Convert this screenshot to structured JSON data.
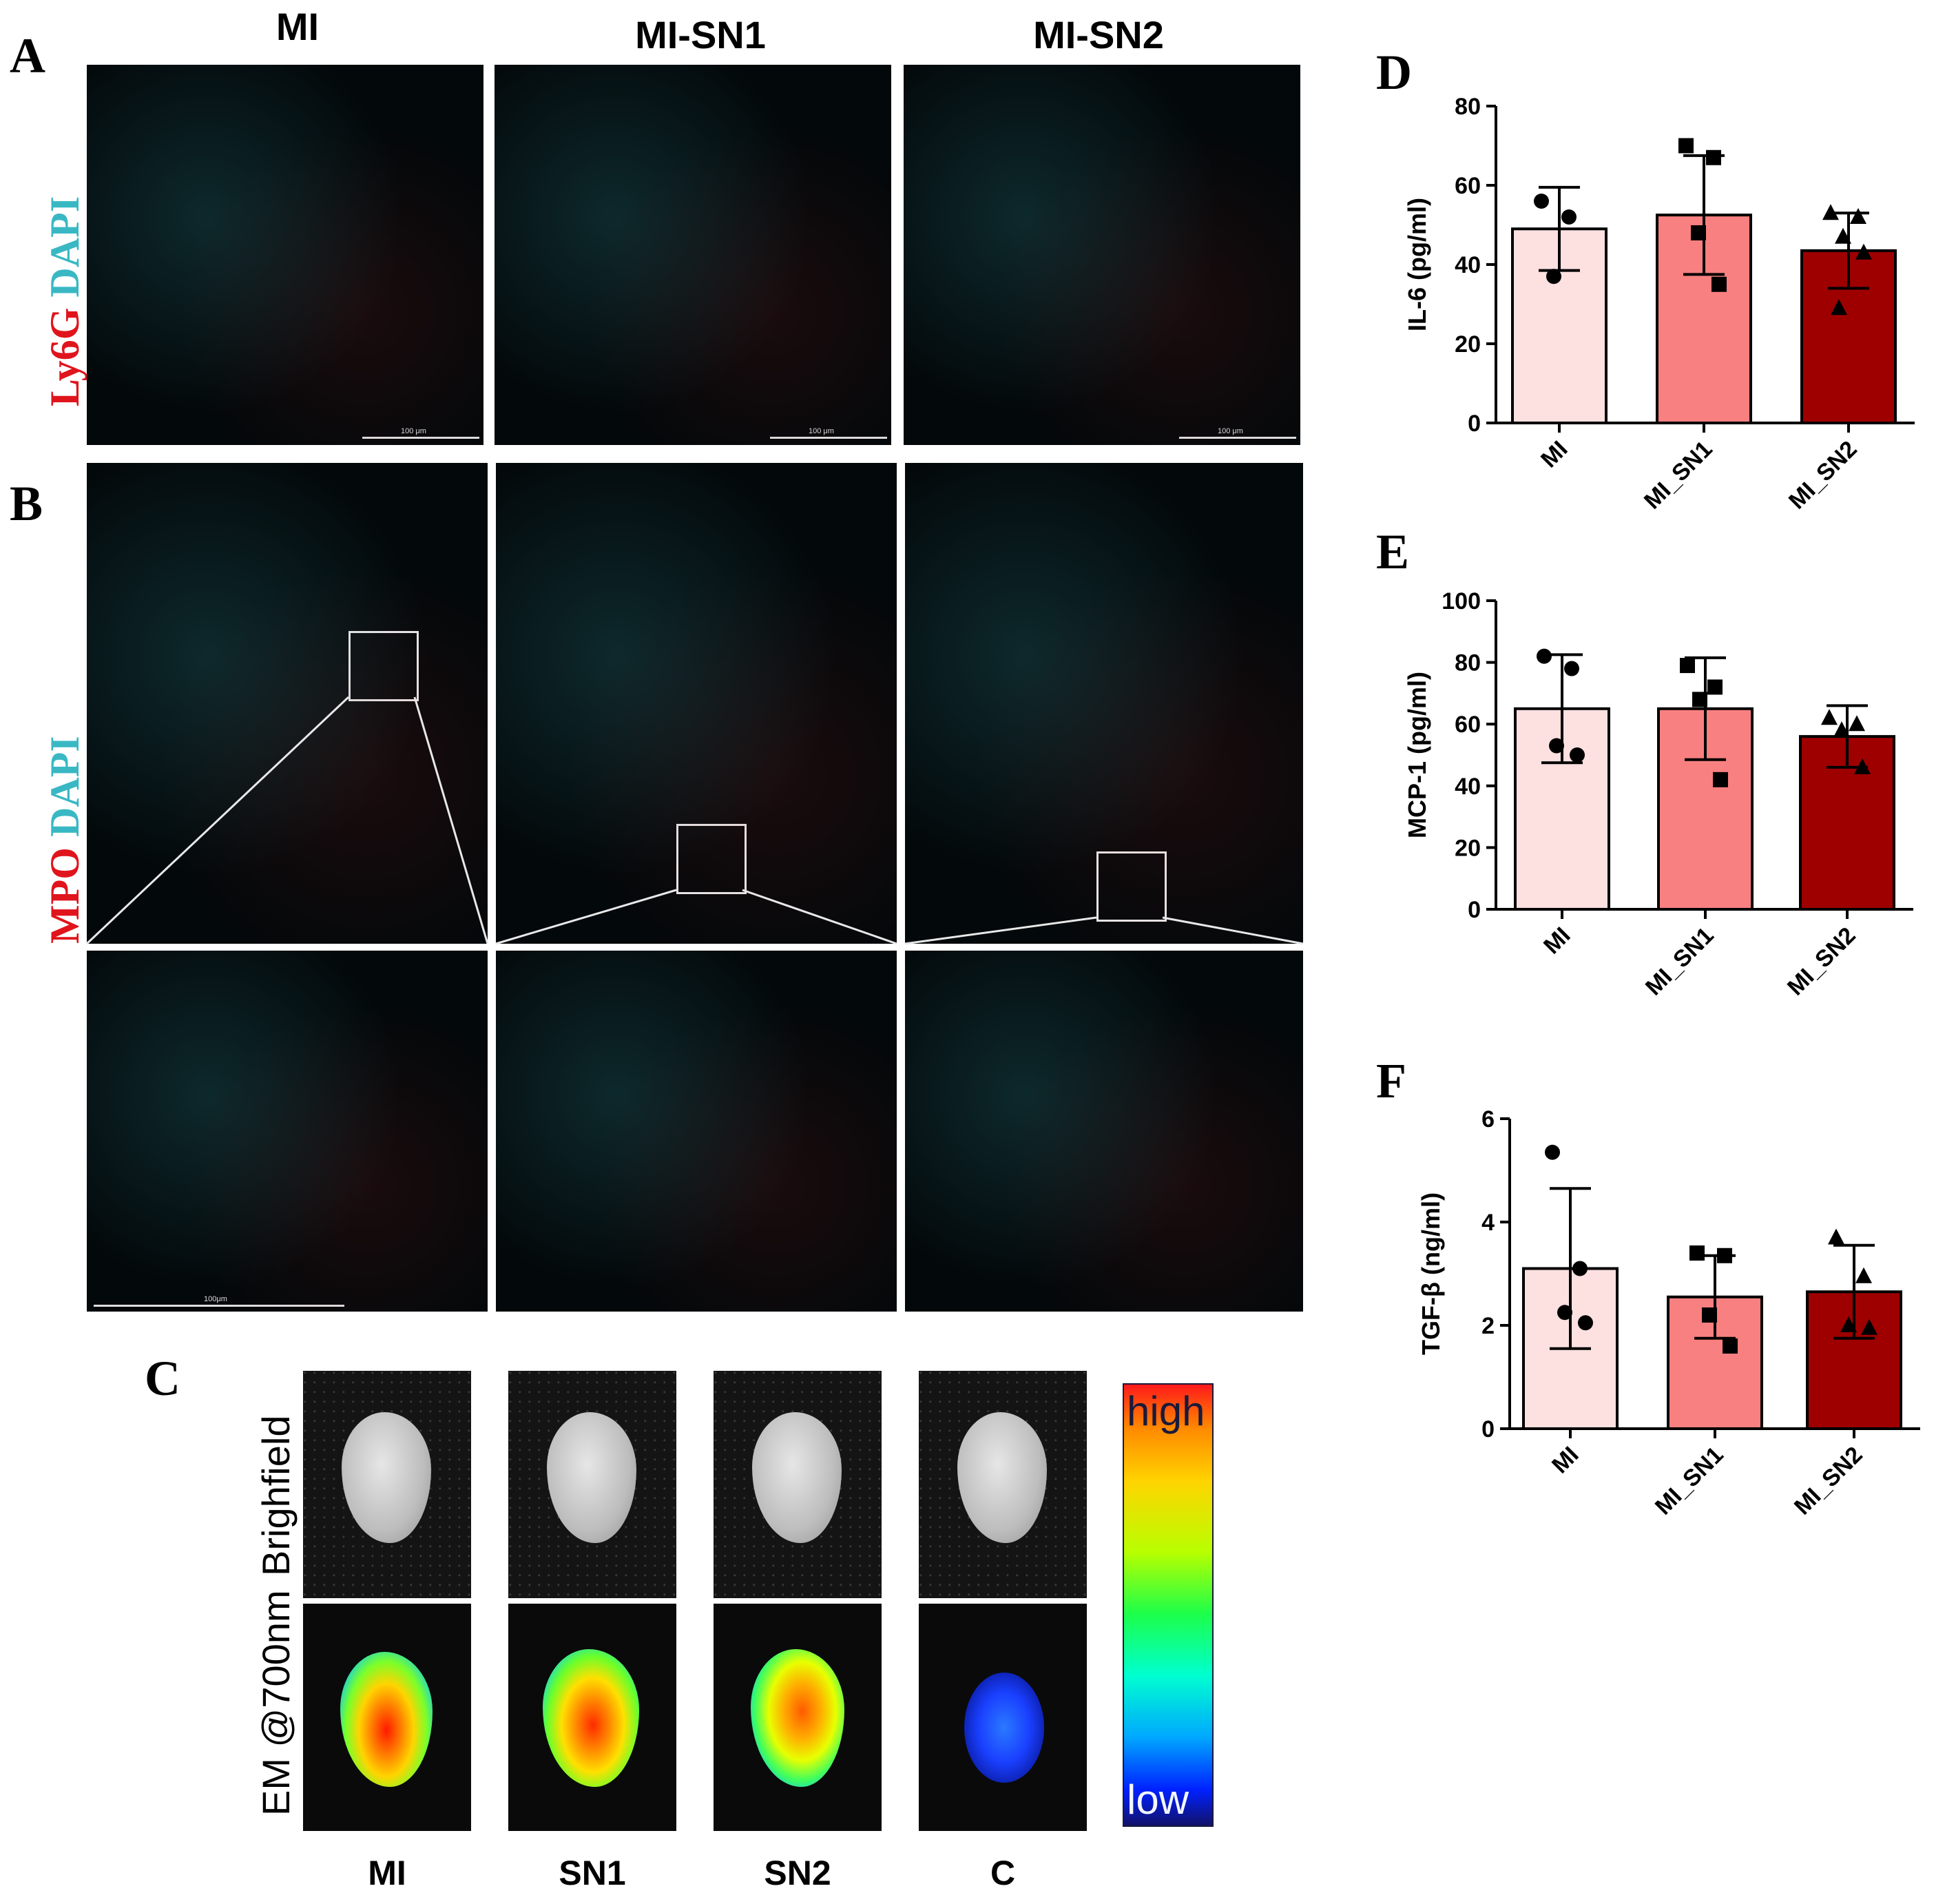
{
  "panel_letters": {
    "a": "A",
    "b": "B",
    "c": "C",
    "d": "D",
    "e": "E",
    "f": "F"
  },
  "columns": [
    "MI",
    "MI-SN1",
    "MI-SN2"
  ],
  "stain_a": {
    "marker": "Ly6G",
    "counter": "DAPI"
  },
  "stain_b": {
    "marker": "MPO",
    "counter": "DAPI"
  },
  "scalebar_a": "100 μm",
  "scalebar_b": "100μm",
  "panel_c": {
    "row_labels": [
      "Brighfield",
      "EM @700nm"
    ],
    "groups": [
      "MI",
      "SN1",
      "SN2",
      "C"
    ],
    "colorbar": {
      "high": "high",
      "low": "low"
    }
  },
  "colors": {
    "mi": "#fde0e0",
    "sn1": "#f98080",
    "sn2": "#9e0000",
    "red_stain": "#e0141c",
    "cyan_stain": "#39b8c4"
  },
  "chart_data": [
    {
      "type": "bar",
      "panel": "D",
      "categories": [
        "MI",
        "MI_SN1",
        "MI_SN2"
      ],
      "values": [
        49,
        52.5,
        43.5
      ],
      "errors": [
        10.5,
        15,
        9.5
      ],
      "points": [
        [
          56,
          52,
          37
        ],
        [
          70,
          67,
          48,
          35
        ],
        [
          53,
          52,
          47,
          43,
          29
        ]
      ],
      "markers": [
        "circle",
        "square",
        "triangle"
      ],
      "ylabel": "IL-6 (pg/ml)",
      "ylim": [
        0,
        80
      ],
      "yticks": [
        0,
        20,
        40,
        60,
        80
      ]
    },
    {
      "type": "bar",
      "panel": "E",
      "categories": [
        "MI",
        "MI_SN1",
        "MI_SN2"
      ],
      "values": [
        65,
        65,
        56
      ],
      "errors": [
        17.5,
        16.5,
        10
      ],
      "points": [
        [
          82,
          78,
          53,
          50
        ],
        [
          79,
          72,
          68,
          42
        ],
        [
          62,
          60,
          58,
          46
        ]
      ],
      "markers": [
        "circle",
        "square",
        "triangle"
      ],
      "ylabel": "MCP-1 (pg/ml)",
      "ylim": [
        0,
        100
      ],
      "yticks": [
        0,
        20,
        40,
        60,
        80,
        100
      ]
    },
    {
      "type": "bar",
      "panel": "F",
      "categories": [
        "MI",
        "MI_SN1",
        "MI_SN2"
      ],
      "values": [
        3.1,
        2.55,
        2.65
      ],
      "errors": [
        1.55,
        0.8,
        0.9
      ],
      "points": [
        [
          5.35,
          3.1,
          2.25,
          2.05
        ],
        [
          3.4,
          3.35,
          2.2,
          1.6
        ],
        [
          3.7,
          2.95,
          2.0,
          1.95
        ]
      ],
      "markers": [
        "circle",
        "square",
        "triangle"
      ],
      "ylabel": "TGF-β (ng/ml)",
      "ylim": [
        0,
        6
      ],
      "yticks": [
        0,
        2,
        4,
        6
      ]
    }
  ]
}
